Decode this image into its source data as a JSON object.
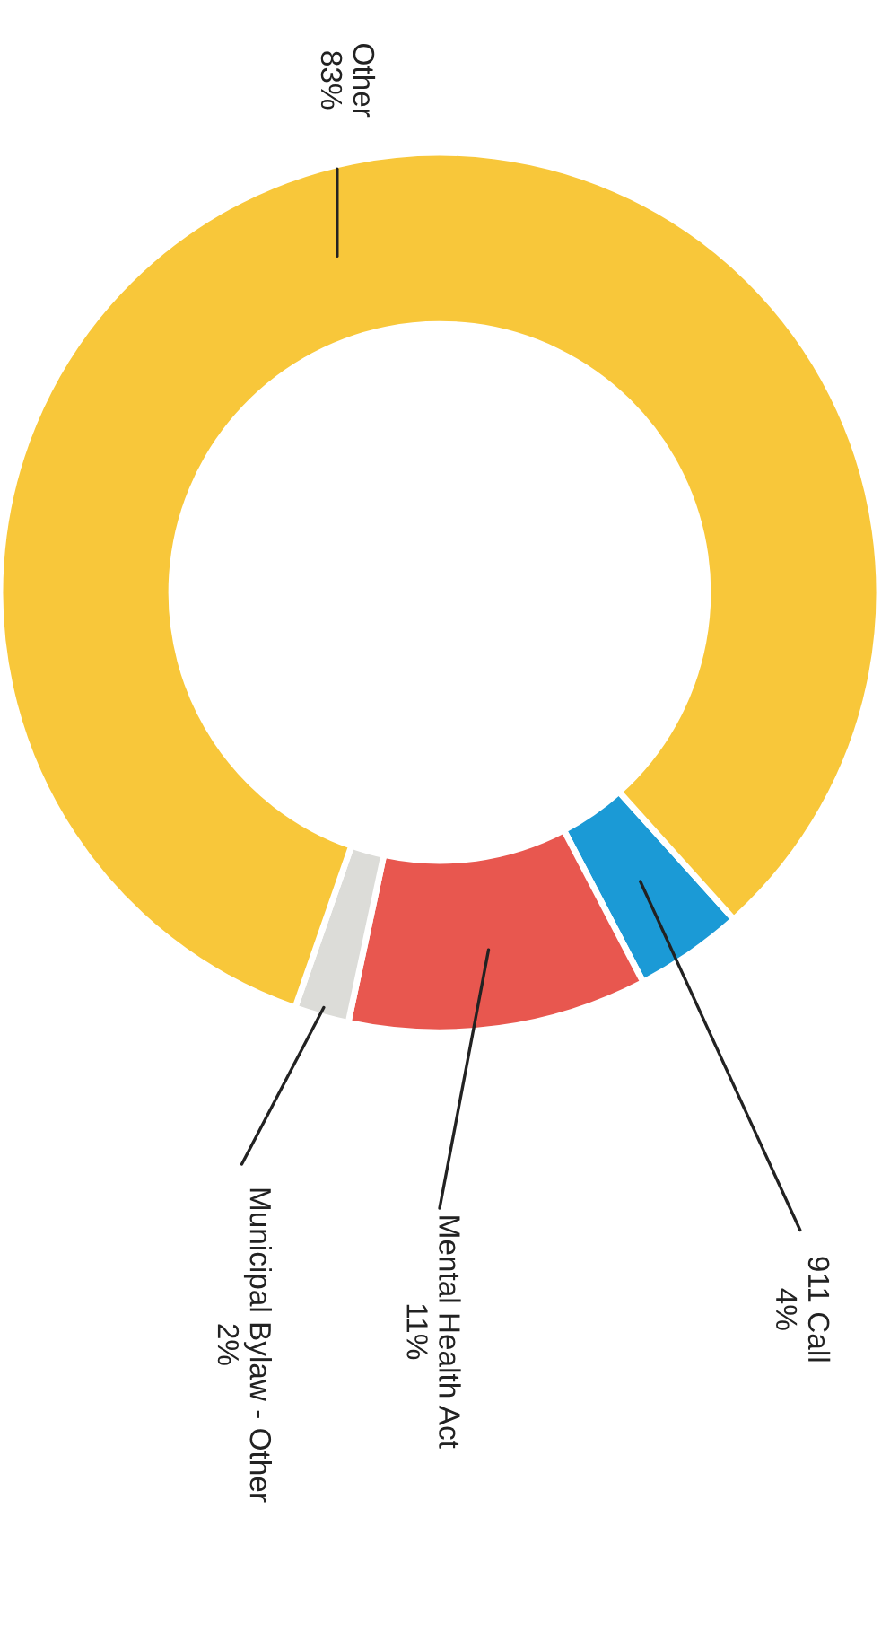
{
  "chart_data": {
    "type": "donut",
    "categories": [
      "911 Call",
      "Mental Health Act",
      "Municipal Bylaw - Other",
      "Other"
    ],
    "values": [
      4,
      11,
      2,
      83
    ],
    "colors": [
      "#1b9ad6",
      "#e8574f",
      "#dcdcd8",
      "#f8c73a"
    ],
    "value_labels": [
      "4%",
      "11%",
      "2%",
      "83%"
    ]
  }
}
